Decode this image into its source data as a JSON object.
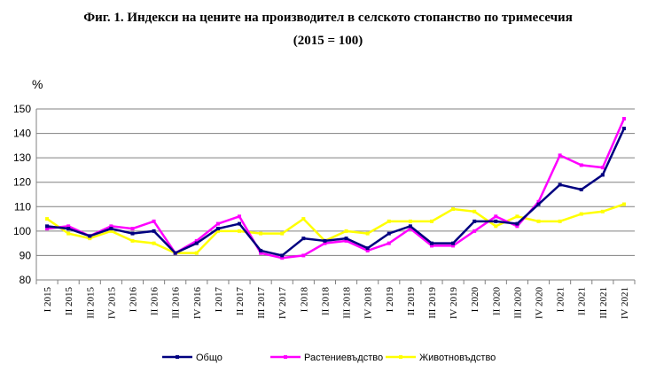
{
  "chart_data": {
    "type": "line",
    "title": "Фиг. 1. Индекси на цените на производител в селското стопанство по тримесечия",
    "subtitle": "(2015 = 100)",
    "ylabel": "%",
    "ylim": [
      80,
      150
    ],
    "yticks": [
      80,
      90,
      100,
      110,
      120,
      130,
      140,
      150
    ],
    "grid": true,
    "legend_position": "bottom",
    "categories": [
      "I 2015",
      "II 2015",
      "III 2015",
      "IV 2015",
      "I 2016",
      "II 2016",
      "III 2016",
      "IV 2016",
      "I 2017",
      "II 2017",
      "III 2017",
      "IV 2017",
      "I 2018",
      "II 2018",
      "III 2018",
      "IV 2018",
      "I 2019",
      "II 2019",
      "III 2019",
      "IV 2019",
      "I 2020",
      "II 2020",
      "III 2020",
      "IV 2020",
      "I 2021",
      "II 2021",
      "III 2021",
      "IV 2021"
    ],
    "series": [
      {
        "name": "Общо",
        "color": "#000080",
        "values": [
          102,
          101,
          98,
          101,
          99,
          100,
          91,
          95,
          101,
          103,
          92,
          90,
          97,
          96,
          97,
          93,
          99,
          102,
          95,
          95,
          104,
          104,
          103,
          111,
          119,
          117,
          123,
          142
        ]
      },
      {
        "name": "Растениевъдство",
        "color": "#ff00ff",
        "values": [
          101,
          102,
          98,
          102,
          101,
          104,
          91,
          96,
          103,
          106,
          91,
          89,
          90,
          95,
          96,
          92,
          95,
          101,
          94,
          94,
          100,
          106,
          102,
          112,
          131,
          127,
          126,
          146
        ]
      },
      {
        "name": "Животновъдство",
        "color": "#ffff00",
        "values": [
          105,
          99,
          97,
          100,
          96,
          95,
          91,
          91,
          100,
          100,
          99,
          99,
          105,
          96,
          100,
          99,
          104,
          104,
          104,
          109,
          108,
          102,
          106,
          104,
          104,
          107,
          108,
          111
        ]
      }
    ]
  }
}
